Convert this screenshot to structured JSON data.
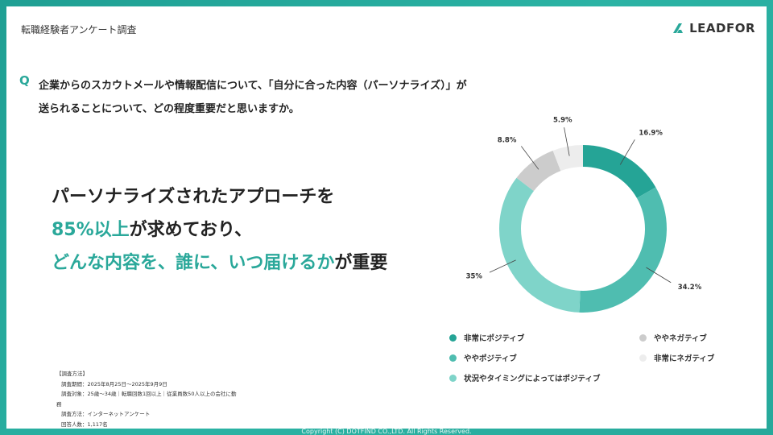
{
  "header": {
    "title": "転職経験者アンケート調査",
    "logo_text": "LEADFOR"
  },
  "question": {
    "mark": "Q",
    "line1": "企業からのスカウトメールや情報配信について、「自分に合った内容（パーソナライズ）」が",
    "line2": "送られることについて、どの程度重要だと思いますか。"
  },
  "headline": {
    "line1": "パーソナライズされたアプローチを",
    "line2_accent": "85%以上",
    "line2_rest": "が求めており、",
    "line3_accent": "どんな内容を、誰に、いつ届けるか",
    "line3_rest": "が重要"
  },
  "survey": {
    "title": "【調査方法】",
    "lines": [
      "調査期間：2025年8月25日～2025年9月9日",
      "調査対象：25歳～34歳｜転職回数1回以上｜従業員数50人以上の会社に勤",
      "務",
      "調査方法：インターネットアンケート",
      "回答人数：1,117名"
    ]
  },
  "chart_data": {
    "type": "pie",
    "donut": true,
    "start": "top, clockwise",
    "series": [
      {
        "name": "非常にポジティブ",
        "value": 16.9,
        "label": "16.9%",
        "color": "#25a496"
      },
      {
        "name": "ややポジティブ",
        "value": 34.2,
        "label": "34.2%",
        "color": "#4fbdb0"
      },
      {
        "name": "状況やタイミングによってはポジティブ",
        "value": 35,
        "label": "35%",
        "color": "#7fd4c9"
      },
      {
        "name": "ややネガティブ",
        "value": 8.8,
        "label": "8.8%",
        "color": "#cccccc"
      },
      {
        "name": "非常にネガティブ",
        "value": 5.9,
        "label": "5.9%",
        "color": "#ededed"
      }
    ],
    "legend_position": "bottom"
  },
  "footer": {
    "copyright": "Copyright (C) DOTFIND CO.,LTD. All Rights Reserved."
  }
}
